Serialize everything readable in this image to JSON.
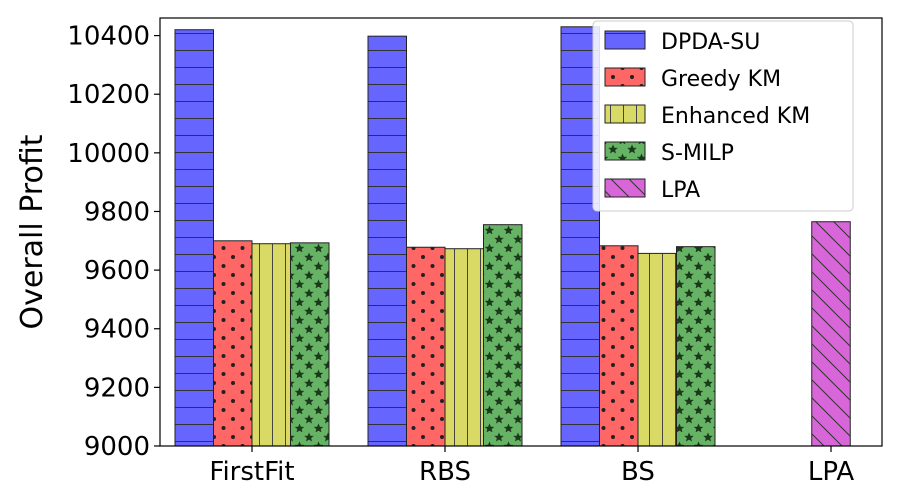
{
  "chart_data": {
    "type": "bar",
    "title": "",
    "xlabel": "",
    "ylabel": "Overall Profit",
    "ylim": [
      9000,
      10460
    ],
    "yticks": [
      9000,
      9200,
      9400,
      9600,
      9800,
      10000,
      10200,
      10400
    ],
    "categories": [
      "FirstFit",
      "RBS",
      "BS",
      "LPA"
    ],
    "grid": false,
    "legend_position": "top-right",
    "series": [
      {
        "name": "DPDA-SU",
        "color": "#0000ff",
        "hatch": "horizontal",
        "values": [
          10420,
          10398,
          10430,
          null
        ]
      },
      {
        "name": "Greedy KM",
        "color": "#ff0000",
        "hatch": "dots",
        "values": [
          9700,
          9678,
          9683,
          null
        ]
      },
      {
        "name": "Enhanced KM",
        "color": "#bfbf00",
        "hatch": "vertical",
        "values": [
          9690,
          9673,
          9657,
          null
        ]
      },
      {
        "name": "S-MILP",
        "color": "#008000",
        "hatch": "stars",
        "values": [
          9693,
          9755,
          9680,
          null
        ]
      },
      {
        "name": "LPA",
        "color": "#bf00bf",
        "hatch": "backslash",
        "values": [
          null,
          null,
          null,
          9765
        ]
      }
    ]
  }
}
